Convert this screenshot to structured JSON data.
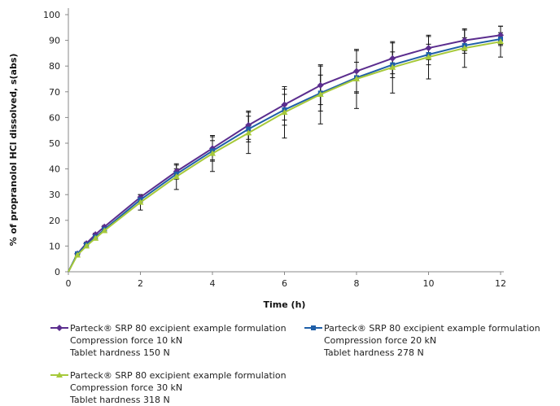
{
  "chart_data": {
    "type": "line",
    "title": "",
    "xlabel": "Time (h)",
    "ylabel": "% of propranolol HCl dissolved, s(abs)",
    "xlim": [
      0,
      12
    ],
    "ylim": [
      0,
      100
    ],
    "xticks": [
      0,
      2,
      4,
      6,
      8,
      10,
      12
    ],
    "yticks": [
      0,
      10,
      20,
      30,
      40,
      50,
      60,
      70,
      80,
      90,
      100
    ],
    "grid": false,
    "legend_position": "bottom",
    "x": [
      0,
      0.25,
      0.5,
      0.75,
      1,
      2,
      3,
      4,
      5,
      6,
      7,
      8,
      9,
      10,
      11,
      12
    ],
    "series": [
      {
        "name": "Parteck® SRP 80 excipient example formulation",
        "name_lines": [
          "Parteck® SRP 80 excipient example formulation",
          "Compression force 10 kN",
          "Tablet hardness 150 N"
        ],
        "color": "#5b2d8e",
        "marker": "diamond",
        "values": [
          0,
          7,
          11,
          14.5,
          17.5,
          29,
          39,
          48,
          57,
          65,
          72.5,
          78,
          83,
          87,
          90,
          92
        ],
        "error": [
          0,
          0.5,
          0.5,
          0.5,
          0.5,
          1,
          2.5,
          4.5,
          5.5,
          6,
          7.5,
          8,
          6,
          4.5,
          4,
          3.5
        ]
      },
      {
        "name": "Parteck® SRP 80 excipient example formulation",
        "name_lines": [
          "Parteck® SRP 80 excipient example formulation",
          "Compression force 20 kN",
          "Tablet hardness 278 N"
        ],
        "color": "#1f5fa8",
        "marker": "square",
        "values": [
          0,
          7,
          10.5,
          13.5,
          16.5,
          28,
          38,
          47,
          55.5,
          63,
          69.5,
          75.5,
          80.5,
          84.5,
          88,
          90.5
        ],
        "error": [
          0,
          0.5,
          0.5,
          0.5,
          0.5,
          1,
          2,
          4,
          5,
          6,
          7,
          6,
          5,
          4,
          3,
          2.5
        ]
      },
      {
        "name": "Parteck® SRP 80 excipient example formulation",
        "name_lines": [
          "Parteck® SRP 80 excipient example formulation",
          "Compression force 30 kN",
          "Tablet hardness 318 N"
        ],
        "color": "#a6c93a",
        "marker": "triangle",
        "values": [
          0,
          6.5,
          10,
          13,
          16,
          27,
          37,
          46,
          54,
          62,
          69,
          75,
          79.5,
          83.5,
          87,
          89.5
        ],
        "error": [
          0,
          0.5,
          0.5,
          0.5,
          0.5,
          3,
          5,
          7,
          8,
          10,
          11.5,
          11.5,
          10,
          8.5,
          7.5,
          6
        ]
      }
    ]
  }
}
